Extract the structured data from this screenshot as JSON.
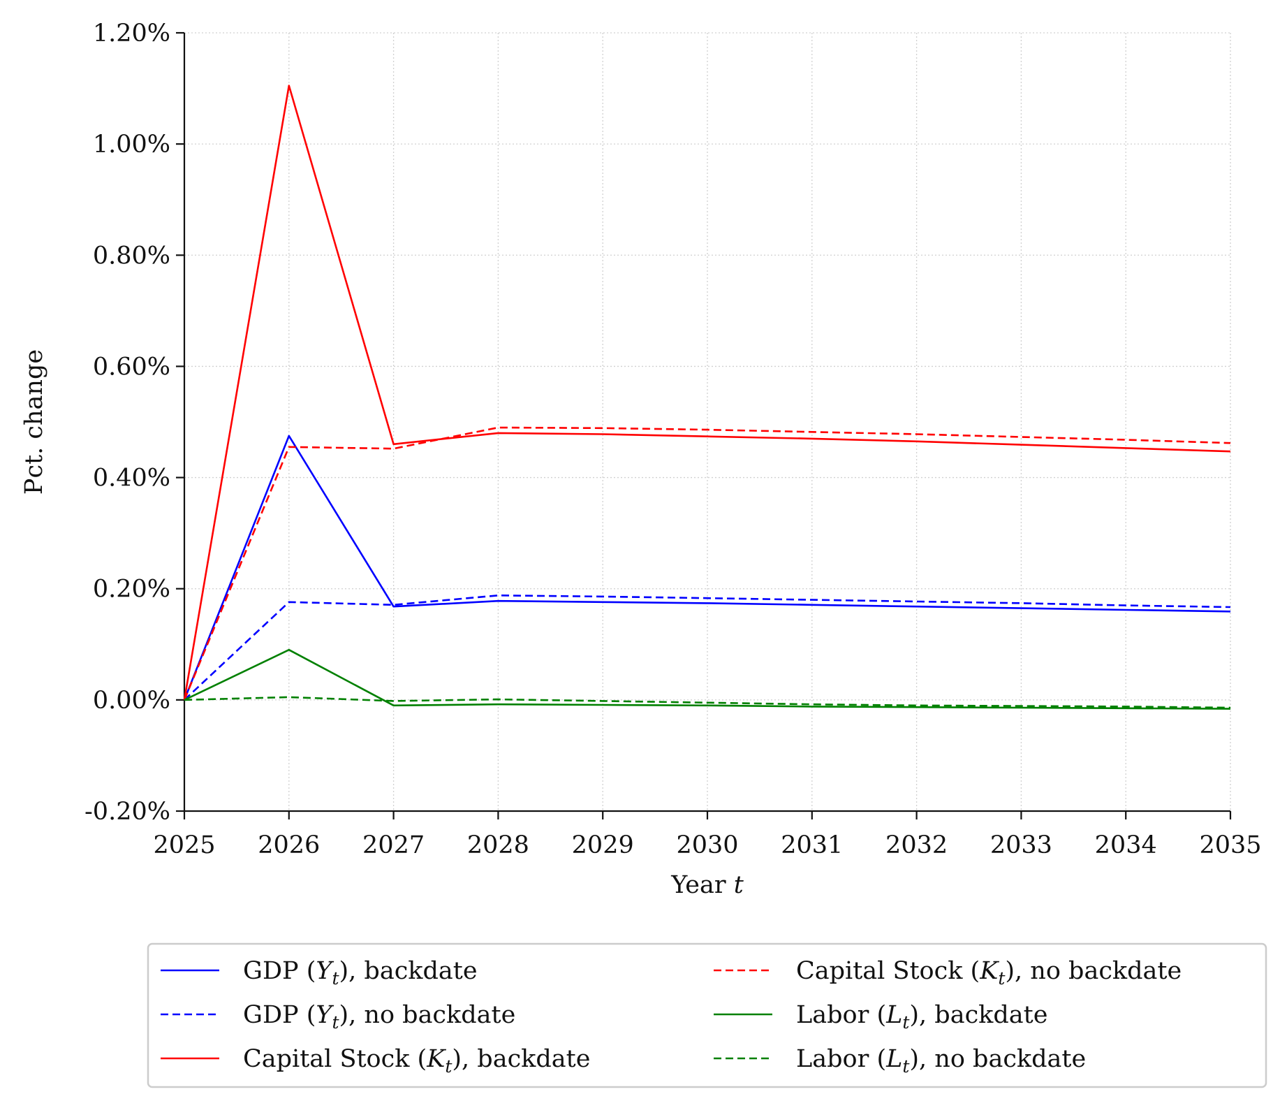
{
  "chart_data": {
    "type": "line",
    "xlabel": "Year",
    "xlabel_var": "t",
    "ylabel": "Pct. change",
    "x": [
      2025,
      2026,
      2027,
      2028,
      2029,
      2030,
      2031,
      2032,
      2033,
      2034,
      2035
    ],
    "x_tick_labels": [
      "2025",
      "2026",
      "2027",
      "2028",
      "2029",
      "2030",
      "2031",
      "2032",
      "2033",
      "2034",
      "2035"
    ],
    "ylim": [
      -0.2,
      1.2
    ],
    "y_ticks": [
      -0.2,
      0.0,
      0.2,
      0.4,
      0.6,
      0.8,
      1.0,
      1.2
    ],
    "y_tick_labels": [
      "-0.20%",
      "0.00%",
      "0.20%",
      "0.40%",
      "0.60%",
      "0.80%",
      "1.00%",
      "1.20%"
    ],
    "grid": true,
    "legend_position": "below plot, two columns",
    "series": [
      {
        "name": "GDP (Y_t), backdate",
        "name_parts": {
          "pre": "GDP (",
          "sym": "Y",
          "sub": "t",
          "post": "), backdate"
        },
        "color": "#0000ff",
        "dash": "solid",
        "values": [
          0.0,
          0.475,
          0.168,
          0.178,
          0.176,
          0.174,
          0.171,
          0.168,
          0.165,
          0.162,
          0.159
        ]
      },
      {
        "name": "GDP (Y_t), no backdate",
        "name_parts": {
          "pre": "GDP (",
          "sym": "Y",
          "sub": "t",
          "post": "), no backdate"
        },
        "color": "#0000ff",
        "dash": "dashed",
        "values": [
          0.0,
          0.176,
          0.171,
          0.188,
          0.186,
          0.183,
          0.18,
          0.177,
          0.174,
          0.17,
          0.167
        ]
      },
      {
        "name": "Capital Stock (K_t), backdate",
        "name_parts": {
          "pre": "Capital Stock (",
          "sym": "K",
          "sub": "t",
          "post": "), backdate"
        },
        "color": "#ff0000",
        "dash": "solid",
        "values": [
          0.0,
          1.105,
          0.46,
          0.48,
          0.478,
          0.474,
          0.47,
          0.465,
          0.459,
          0.453,
          0.447
        ]
      },
      {
        "name": "Capital Stock (K_t), no backdate",
        "name_parts": {
          "pre": "Capital Stock (",
          "sym": "K",
          "sub": "t",
          "post": "), no backdate"
        },
        "color": "#ff0000",
        "dash": "dashed",
        "values": [
          0.0,
          0.455,
          0.452,
          0.49,
          0.489,
          0.486,
          0.482,
          0.478,
          0.473,
          0.468,
          0.462
        ]
      },
      {
        "name": "Labor (L_t), backdate",
        "name_parts": {
          "pre": "Labor (",
          "sym": "L",
          "sub": "t",
          "post": "), backdate"
        },
        "color": "#008000",
        "dash": "solid",
        "values": [
          0.0,
          0.09,
          -0.01,
          -0.008,
          -0.009,
          -0.01,
          -0.012,
          -0.013,
          -0.014,
          -0.015,
          -0.016
        ]
      },
      {
        "name": "Labor (L_t), no backdate",
        "name_parts": {
          "pre": "Labor (",
          "sym": "L",
          "sub": "t",
          "post": "), no backdate"
        },
        "color": "#008000",
        "dash": "dashed",
        "values": [
          0.0,
          0.005,
          -0.002,
          0.001,
          -0.002,
          -0.005,
          -0.008,
          -0.01,
          -0.011,
          -0.012,
          -0.014
        ]
      }
    ]
  }
}
